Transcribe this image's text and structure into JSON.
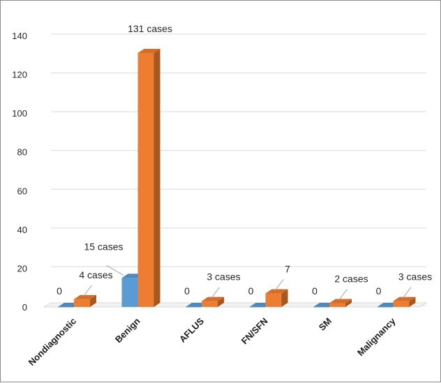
{
  "chart_data": {
    "type": "bar",
    "categories": [
      "Nondiagnostic",
      "Benign",
      "AFLUS",
      "FN/SFN",
      "SM",
      "Malignancy"
    ],
    "series": [
      {
        "values": [
          0,
          15,
          0,
          0,
          0,
          0
        ],
        "data_labels": [
          "0",
          "15 cases",
          "0",
          "0",
          "0",
          "0"
        ],
        "color": "#5b9bd5"
      },
      {
        "values": [
          4,
          131,
          3,
          7,
          2,
          3
        ],
        "data_labels": [
          "4 cases",
          "131 cases",
          "3 cases",
          "7",
          "2 cases",
          "3 cases"
        ],
        "color": "#ed7d31"
      }
    ],
    "ylim": [
      0,
      140
    ],
    "yticks": [
      0,
      20,
      40,
      60,
      80,
      100,
      120,
      140
    ],
    "grid": true,
    "style": "3d-column"
  }
}
